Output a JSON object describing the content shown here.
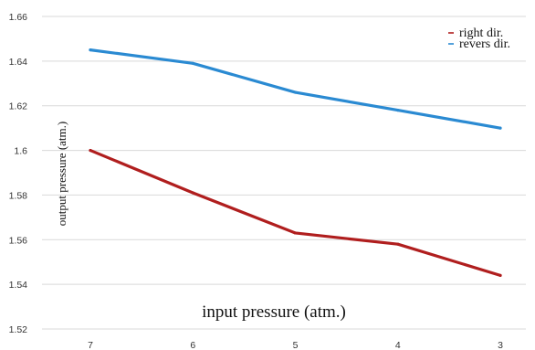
{
  "chart_data": {
    "type": "line",
    "title": "",
    "xlabel": "input  pressure (atm.)",
    "ylabel": "output pressure (atm.)",
    "categories": [
      "7",
      "6",
      "5",
      "4",
      "3"
    ],
    "ylim": [
      1.52,
      1.66
    ],
    "yticks": [
      "1.52",
      "1.54",
      "1.56",
      "1.58",
      "1.6",
      "1.62",
      "1.64",
      "1.66"
    ],
    "grid": true,
    "legend_position": "top-right",
    "series": [
      {
        "name": "right dir.",
        "color": "#b01e1e",
        "values": [
          1.6,
          1.581,
          1.563,
          1.558,
          1.544
        ]
      },
      {
        "name": "revers dir.",
        "color": "#2a8ad2",
        "values": [
          1.645,
          1.639,
          1.626,
          1.618,
          1.61
        ]
      }
    ]
  }
}
